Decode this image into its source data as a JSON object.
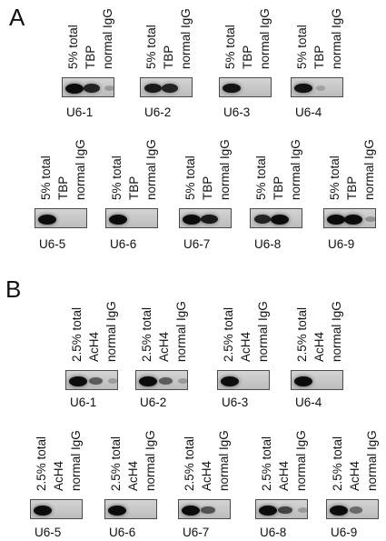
{
  "figure": {
    "colors": {
      "ink": "#111111",
      "membrane_light": "#d4d4d4",
      "membrane_dark": "#bcbcbc",
      "band": "#0c0c0c"
    },
    "panels": [
      {
        "id": "A",
        "letter": "A",
        "lanes": [
          "5% total",
          "TBP",
          "normal IgG"
        ],
        "rows": [
          {
            "blots": [
              {
                "caption": "U6-1",
                "band_intensity": [
                  1.0,
                  0.85,
                  0.1
                ]
              },
              {
                "caption": "U6-2",
                "band_intensity": [
                  0.9,
                  0.85,
                  0.0
                ]
              },
              {
                "caption": "U6-3",
                "band_intensity": [
                  0.95,
                  0.0,
                  0.0
                ]
              },
              {
                "caption": "U6-4",
                "band_intensity": [
                  0.95,
                  0.05,
                  0.0
                ]
              }
            ]
          },
          {
            "blots": [
              {
                "caption": "U6-5",
                "band_intensity": [
                  1.0,
                  0.0,
                  0.0
                ]
              },
              {
                "caption": "U6-6",
                "band_intensity": [
                  1.0,
                  0.0,
                  0.0
                ]
              },
              {
                "caption": "U6-7",
                "band_intensity": [
                  1.0,
                  0.9,
                  0.0
                ]
              },
              {
                "caption": "U6-8",
                "band_intensity": [
                  0.85,
                  1.0,
                  0.0
                ]
              },
              {
                "caption": "U6-9",
                "band_intensity": [
                  1.0,
                  1.0,
                  0.15
                ]
              }
            ]
          }
        ]
      },
      {
        "id": "B",
        "letter": "B",
        "lanes": [
          "2.5% total",
          "AcH4",
          "normal IgG"
        ],
        "rows": [
          {
            "blots": [
              {
                "caption": "U6-1",
                "band_intensity": [
                  1.0,
                  0.5,
                  0.08
                ]
              },
              {
                "caption": "U6-2",
                "band_intensity": [
                  1.0,
                  0.5,
                  0.1
                ]
              },
              {
                "caption": "U6-3",
                "band_intensity": [
                  1.0,
                  0.0,
                  0.0
                ]
              },
              {
                "caption": "U6-4",
                "band_intensity": [
                  1.0,
                  0.0,
                  0.0
                ]
              }
            ]
          },
          {
            "blots": [
              {
                "caption": "U6-5",
                "band_intensity": [
                  1.0,
                  0.0,
                  0.0
                ]
              },
              {
                "caption": "U6-6",
                "band_intensity": [
                  1.0,
                  0.0,
                  0.0
                ]
              },
              {
                "caption": "U6-7",
                "band_intensity": [
                  1.0,
                  0.55,
                  0.0
                ]
              },
              {
                "caption": "U6-8",
                "band_intensity": [
                  1.0,
                  0.65,
                  0.1
                ]
              },
              {
                "caption": "U6-9",
                "band_intensity": [
                  1.0,
                  0.4,
                  0.0
                ]
              }
            ]
          }
        ]
      }
    ]
  }
}
